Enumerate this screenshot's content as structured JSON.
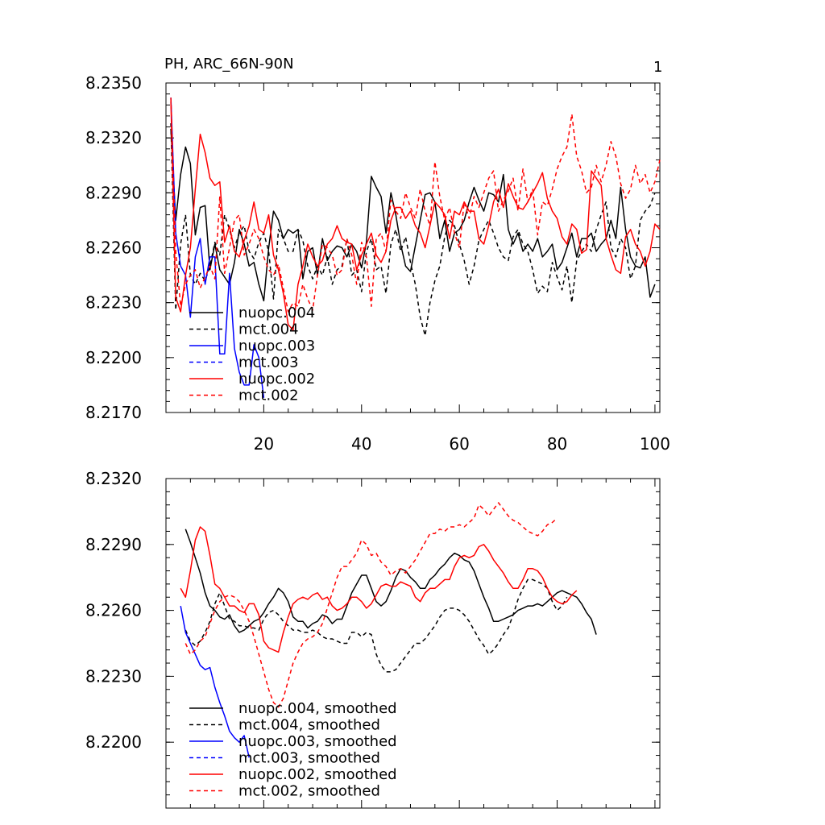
{
  "colors": {
    "black": "#000000",
    "blue": "#0000ff",
    "red": "#ff0000"
  },
  "chart_data": [
    {
      "type": "line",
      "title": "PH, ARC_66N-90N",
      "corner_label": "1",
      "ylim": [
        8.217,
        8.235
      ],
      "yticks": [
        8.217,
        8.22,
        8.223,
        8.226,
        8.229,
        8.232,
        8.235
      ],
      "ytick_labels": [
        "8.2170",
        "8.2200",
        "8.2230",
        "8.2260",
        "8.2290",
        "8.2320",
        "8.2350"
      ],
      "xlim": [
        0,
        101
      ],
      "xticks": [
        20,
        40,
        60,
        80,
        100
      ],
      "xtick_labels": [
        "20",
        "40",
        "60",
        "80",
        "100"
      ],
      "legend_position": "lower-left",
      "series": [
        {
          "name": "nuopc.004",
          "color": "#000000",
          "dash": "solid",
          "x0": 1,
          "values": [
            8.2325,
            8.2275,
            8.23,
            8.2315,
            8.2306,
            8.2267,
            8.2282,
            8.2283,
            8.2248,
            8.2262,
            8.2248,
            8.2244,
            8.224,
            8.2252,
            8.227,
            8.2262,
            8.225,
            8.2252,
            8.224,
            8.2231,
            8.226,
            8.228,
            8.2275,
            8.2265,
            8.227,
            8.2268,
            8.227,
            8.2243,
            8.2258,
            8.226,
            8.2245,
            8.2265,
            8.2253,
            8.2258,
            8.2261,
            8.226,
            8.2255,
            8.2262,
            8.2258,
            8.2249,
            8.2263,
            8.2299,
            8.2293,
            8.2288,
            8.2268,
            8.229,
            8.2278,
            8.2262,
            8.225,
            8.2247,
            8.2261,
            8.2275,
            8.2289,
            8.229,
            8.2285,
            8.2265,
            8.2275,
            8.2258,
            8.2268,
            8.227,
            8.2275,
            8.2285,
            8.2293,
            8.2286,
            8.228,
            8.229,
            8.2289,
            8.2285,
            8.23,
            8.227,
            8.2262,
            8.2268,
            8.2258,
            8.2262,
            8.2258,
            8.2265,
            8.2255,
            8.2258,
            8.2262,
            8.2248,
            8.2252,
            8.226,
            8.2268,
            8.2255,
            8.2265,
            8.2265,
            8.2268,
            8.2258,
            8.2262,
            8.2265,
            8.2275,
            8.2265,
            8.2293,
            8.227,
            8.2255,
            8.225,
            8.2249,
            8.2255,
            8.2233,
            8.224
          ]
        },
        {
          "name": "mct.004",
          "color": "#000000",
          "dash": "dashed",
          "x0": 1,
          "values": [
            8.2328,
            8.2226,
            8.2262,
            8.2278,
            8.2245,
            8.224,
            8.2246,
            8.2242,
            8.225,
            8.2263,
            8.2256,
            8.2278,
            8.227,
            8.226,
            8.2268,
            8.2272,
            8.2258,
            8.2254,
            8.2263,
            8.2268,
            8.2258,
            8.2232,
            8.227,
            8.2265,
            8.2258,
            8.2258,
            8.227,
            8.2264,
            8.225,
            8.2243,
            8.225,
            8.2245,
            8.2255,
            8.224,
            8.2248,
            8.225,
            8.2265,
            8.2245,
            8.2248,
            8.2236,
            8.2258,
            8.2265,
            8.2248,
            8.225,
            8.2235,
            8.2262,
            8.227,
            8.2258,
            8.2266,
            8.2252,
            8.224,
            8.2222,
            8.2212,
            8.223,
            8.2242,
            8.225,
            8.2266,
            8.2275,
            8.2272,
            8.2262,
            8.2253,
            8.224,
            8.225,
            8.2264,
            8.227,
            8.2275,
            8.2268,
            8.226,
            8.2255,
            8.2253,
            8.2266,
            8.227,
            8.2262,
            8.2258,
            8.2248,
            8.2235,
            8.2239,
            8.2236,
            8.2252,
            8.2244,
            8.2237,
            8.225,
            8.223,
            8.2253,
            8.2258,
            8.2262,
            8.2258,
            8.227,
            8.2278,
            8.2285,
            8.226,
            8.2255,
            8.2265,
            8.226,
            8.2243,
            8.225,
            8.2275,
            8.228,
            8.2283,
            8.229
          ]
        },
        {
          "name": "nuopc.003",
          "color": "#0000ff",
          "dash": "solid",
          "x0": 1,
          "values": [
            8.2342,
            8.2268,
            8.225,
            8.2245,
            8.2222,
            8.2255,
            8.2265,
            8.224,
            8.2255,
            8.2255,
            8.2202,
            8.2202,
            8.2246,
            8.2205,
            8.2192,
            8.2185,
            8.2185,
            8.2207,
            8.22,
            8.2178
          ]
        },
        {
          "name": "mct.003",
          "color": "#0000ff",
          "dash": "dashed",
          "x0": 1,
          "values": []
        },
        {
          "name": "nuopc.002",
          "color": "#ff0000",
          "dash": "solid",
          "x0": 1,
          "values": [
            8.234,
            8.2233,
            8.2225,
            8.2245,
            8.226,
            8.2292,
            8.2322,
            8.2312,
            8.2298,
            8.2294,
            8.2296,
            8.2263,
            8.2272,
            8.2258,
            8.2255,
            8.2264,
            8.2272,
            8.2285,
            8.227,
            8.2268,
            8.2278,
            8.2256,
            8.2248,
            8.2235,
            8.2218,
            8.2215,
            8.224,
            8.225,
            8.2262,
            8.2255,
            8.225,
            8.2253,
            8.2262,
            8.2265,
            8.2272,
            8.2265,
            8.2263,
            8.2262,
            8.2248,
            8.2256,
            8.2262,
            8.2268,
            8.2256,
            8.2252,
            8.2258,
            8.2275,
            8.2282,
            8.2282,
            8.2276,
            8.228,
            8.2272,
            8.2268,
            8.226,
            8.2272,
            8.2285,
            8.2282,
            8.2278,
            8.2265,
            8.228,
            8.2278,
            8.2285,
            8.228,
            8.228,
            8.2265,
            8.2262,
            8.2272,
            8.2285,
            8.2292,
            8.2282,
            8.2295,
            8.2288,
            8.2282,
            8.2281,
            8.2285,
            8.229,
            8.2295,
            8.2301,
            8.2287,
            8.228,
            8.2276,
            8.2266,
            8.2262,
            8.2273,
            8.227,
            8.2257,
            8.2259,
            8.2302,
            8.2298,
            8.2294,
            8.2265,
            8.2256,
            8.2248,
            8.2246,
            8.2266,
            8.227,
            8.2262,
            8.2258,
            8.225,
            8.2258,
            8.2273,
            8.227
          ]
        },
        {
          "name": "mct.002",
          "color": "#ff0000",
          "dash": "dashed",
          "x0": 1,
          "values": [
            8.2342,
            8.2258,
            8.2228,
            8.224,
            8.2245,
            8.2248,
            8.2238,
            8.2244,
            8.225,
            8.2243,
            8.2288,
            8.2246,
            8.226,
            8.2275,
            8.2278,
            8.2256,
            8.2262,
            8.227,
            8.2265,
            8.2255,
            8.2248,
            8.2245,
            8.2251,
            8.2238,
            8.2225,
            8.223,
            8.2228,
            8.224,
            8.2232,
            8.2226,
            8.2245,
            8.2262,
            8.226,
            8.2256,
            8.2245,
            8.2248,
            8.2265,
            8.2256,
            8.224,
            8.2263,
            8.2255,
            8.2228,
            8.2265,
            8.2268,
            8.2258,
            8.2286,
            8.228,
            8.2276,
            8.229,
            8.2282,
            8.2276,
            8.2292,
            8.228,
            8.2272,
            8.2307,
            8.2288,
            8.2275,
            8.2282,
            8.2268,
            8.226,
            8.2285,
            8.2276,
            8.2288,
            8.2282,
            8.229,
            8.2298,
            8.2302,
            8.228,
            8.2286,
            8.2291,
            8.2298,
            8.228,
            8.2303,
            8.2285,
            8.2292,
            8.2267,
            8.2285,
            8.2283,
            8.2292,
            8.2303,
            8.231,
            8.2315,
            8.2333,
            8.231,
            8.2302,
            8.229,
            8.2293,
            8.2305,
            8.2296,
            8.2305,
            8.2318,
            8.231,
            8.2295,
            8.2287,
            8.2292,
            8.2305,
            8.2295,
            8.23,
            8.229,
            8.2296,
            8.2308
          ]
        }
      ]
    },
    {
      "type": "line",
      "title": "",
      "ylim": [
        8.217,
        8.232
      ],
      "yticks": [
        8.22,
        8.223,
        8.226,
        8.229,
        8.232
      ],
      "ytick_labels": [
        "8.2200",
        "8.2230",
        "8.2260",
        "8.2290",
        "8.2320"
      ],
      "xlim": [
        0,
        101
      ],
      "xticks": [
        20,
        40,
        60,
        80,
        100
      ],
      "xtick_labels": [
        "",
        "",
        "",
        "",
        ""
      ],
      "legend_position": "lower-left",
      "series": [
        {
          "name": "nuopc.004, smoothed",
          "color": "#000000",
          "dash": "solid",
          "x0": 4,
          "values": [
            8.2297,
            8.2291,
            8.2284,
            8.2277,
            8.2268,
            8.2262,
            8.226,
            8.2257,
            8.2256,
            8.2258,
            8.2253,
            8.225,
            8.2251,
            8.2253,
            8.2255,
            8.2256,
            8.2259,
            8.2263,
            8.2266,
            8.227,
            8.2268,
            8.2264,
            8.2257,
            8.2255,
            8.2255,
            8.2252,
            8.2254,
            8.2255,
            8.2258,
            8.2257,
            8.2254,
            8.2256,
            8.2256,
            8.2262,
            8.2268,
            8.2272,
            8.2276,
            8.2276,
            8.227,
            8.2264,
            8.2262,
            8.2264,
            8.2269,
            8.2275,
            8.2279,
            8.2278,
            8.2275,
            8.2273,
            8.227,
            8.227,
            8.2274,
            8.2276,
            8.2279,
            8.2281,
            8.2284,
            8.2286,
            8.2285,
            8.2283,
            8.2282,
            8.2278,
            8.2272,
            8.2266,
            8.2261,
            8.2255,
            8.2255,
            8.2256,
            8.2257,
            8.2258,
            8.226,
            8.2261,
            8.2262,
            8.2262,
            8.2263,
            8.2262,
            8.2264,
            8.2266,
            8.2268,
            8.2269,
            8.2268,
            8.2267,
            8.2266,
            8.2263,
            8.2259,
            8.2256,
            8.2249
          ]
        },
        {
          "name": "mct.004, smoothed",
          "color": "#000000",
          "dash": "dashed",
          "x0": 4,
          "values": [
            8.2251,
            8.2246,
            8.2244,
            8.2246,
            8.225,
            8.2255,
            8.2263,
            8.2268,
            8.2262,
            8.2256,
            8.2255,
            8.2253,
            8.2253,
            8.2252,
            8.2252,
            8.2251,
            8.2256,
            8.2259,
            8.226,
            8.2258,
            8.2255,
            8.2253,
            8.2251,
            8.2251,
            8.225,
            8.225,
            8.2251,
            8.225,
            8.2248,
            8.2247,
            8.2247,
            8.2246,
            8.2245,
            8.2245,
            8.225,
            8.225,
            8.2248,
            8.225,
            8.2249,
            8.224,
            8.2235,
            8.2232,
            8.2232,
            8.2233,
            8.2236,
            8.2239,
            8.2242,
            8.2245,
            8.2245,
            8.2247,
            8.225,
            8.2253,
            8.2257,
            8.226,
            8.2261,
            8.2261,
            8.226,
            8.2258,
            8.2255,
            8.2251,
            8.2247,
            8.2244,
            8.224,
            8.2242,
            8.2245,
            8.2249,
            8.2252,
            8.2258,
            8.2265,
            8.227,
            8.2274,
            8.2274,
            8.2273,
            8.2272,
            8.227,
            8.2264,
            8.226,
            8.2262,
            8.2266
          ]
        },
        {
          "name": "nuopc.003, smoothed",
          "color": "#0000ff",
          "dash": "solid",
          "x0": 3,
          "values": [
            8.2262,
            8.225,
            8.2245,
            8.224,
            8.2235,
            8.2233,
            8.2234,
            8.2225,
            8.2218,
            8.2212,
            8.2205,
            8.2202,
            8.22,
            8.2203,
            8.2193
          ]
        },
        {
          "name": "mct.003, smoothed",
          "color": "#0000ff",
          "dash": "dashed",
          "x0": 3,
          "values": []
        },
        {
          "name": "nuopc.002, smoothed",
          "color": "#ff0000",
          "dash": "solid",
          "x0": 3,
          "values": [
            8.227,
            8.2266,
            8.2278,
            8.2292,
            8.2298,
            8.2296,
            8.2285,
            8.2272,
            8.227,
            8.2266,
            8.2262,
            8.2262,
            8.226,
            8.2259,
            8.2263,
            8.2263,
            8.2258,
            8.2246,
            8.2243,
            8.2242,
            8.2241,
            8.225,
            8.2257,
            8.2263,
            8.2265,
            8.2266,
            8.2265,
            8.2267,
            8.2268,
            8.2265,
            8.2266,
            8.2262,
            8.226,
            8.2261,
            8.2263,
            8.2266,
            8.2266,
            8.2264,
            8.2261,
            8.2263,
            8.2267,
            8.2271,
            8.2272,
            8.2271,
            8.2271,
            8.2273,
            8.2272,
            8.2271,
            8.2266,
            8.2264,
            8.2268,
            8.227,
            8.227,
            8.2272,
            8.2274,
            8.2274,
            8.228,
            8.2284,
            8.2285,
            8.2284,
            8.2285,
            8.2289,
            8.229,
            8.2287,
            8.2283,
            8.228,
            8.2277,
            8.2273,
            8.227,
            8.227,
            8.2274,
            8.2279,
            8.2279,
            8.2278,
            8.2275,
            8.227,
            8.2266,
            8.2264,
            8.2263,
            8.2264,
            8.2267,
            8.2269
          ]
        },
        {
          "name": "mct.002, smoothed",
          "color": "#ff0000",
          "dash": "dashed",
          "x0": 4,
          "values": [
            8.2245,
            8.224,
            8.2242,
            8.2246,
            8.2248,
            8.2254,
            8.226,
            8.2264,
            8.2266,
            8.2267,
            8.2266,
            8.2264,
            8.226,
            8.2255,
            8.2248,
            8.224,
            8.2232,
            8.2224,
            8.2218,
            8.2216,
            8.222,
            8.2228,
            8.2236,
            8.2241,
            8.2245,
            8.2247,
            8.2248,
            8.225,
            8.2254,
            8.2261,
            8.2268,
            8.2275,
            8.228,
            8.228,
            8.2283,
            8.2286,
            8.2292,
            8.229,
            8.2285,
            8.2286,
            8.2282,
            8.228,
            8.2276,
            8.2278,
            8.2279,
            8.2277,
            8.228,
            8.2283,
            8.2287,
            8.2291,
            8.2295,
            8.2295,
            8.2297,
            8.2296,
            8.2298,
            8.2298,
            8.2299,
            8.2298,
            8.23,
            8.2302,
            8.2308,
            8.2306,
            8.2303,
            8.2306,
            8.2309,
            8.2306,
            8.2303,
            8.2301,
            8.23,
            8.2298,
            8.2296,
            8.2295,
            8.2294,
            8.2296,
            8.2299,
            8.23,
            8.2302
          ]
        }
      ]
    }
  ]
}
